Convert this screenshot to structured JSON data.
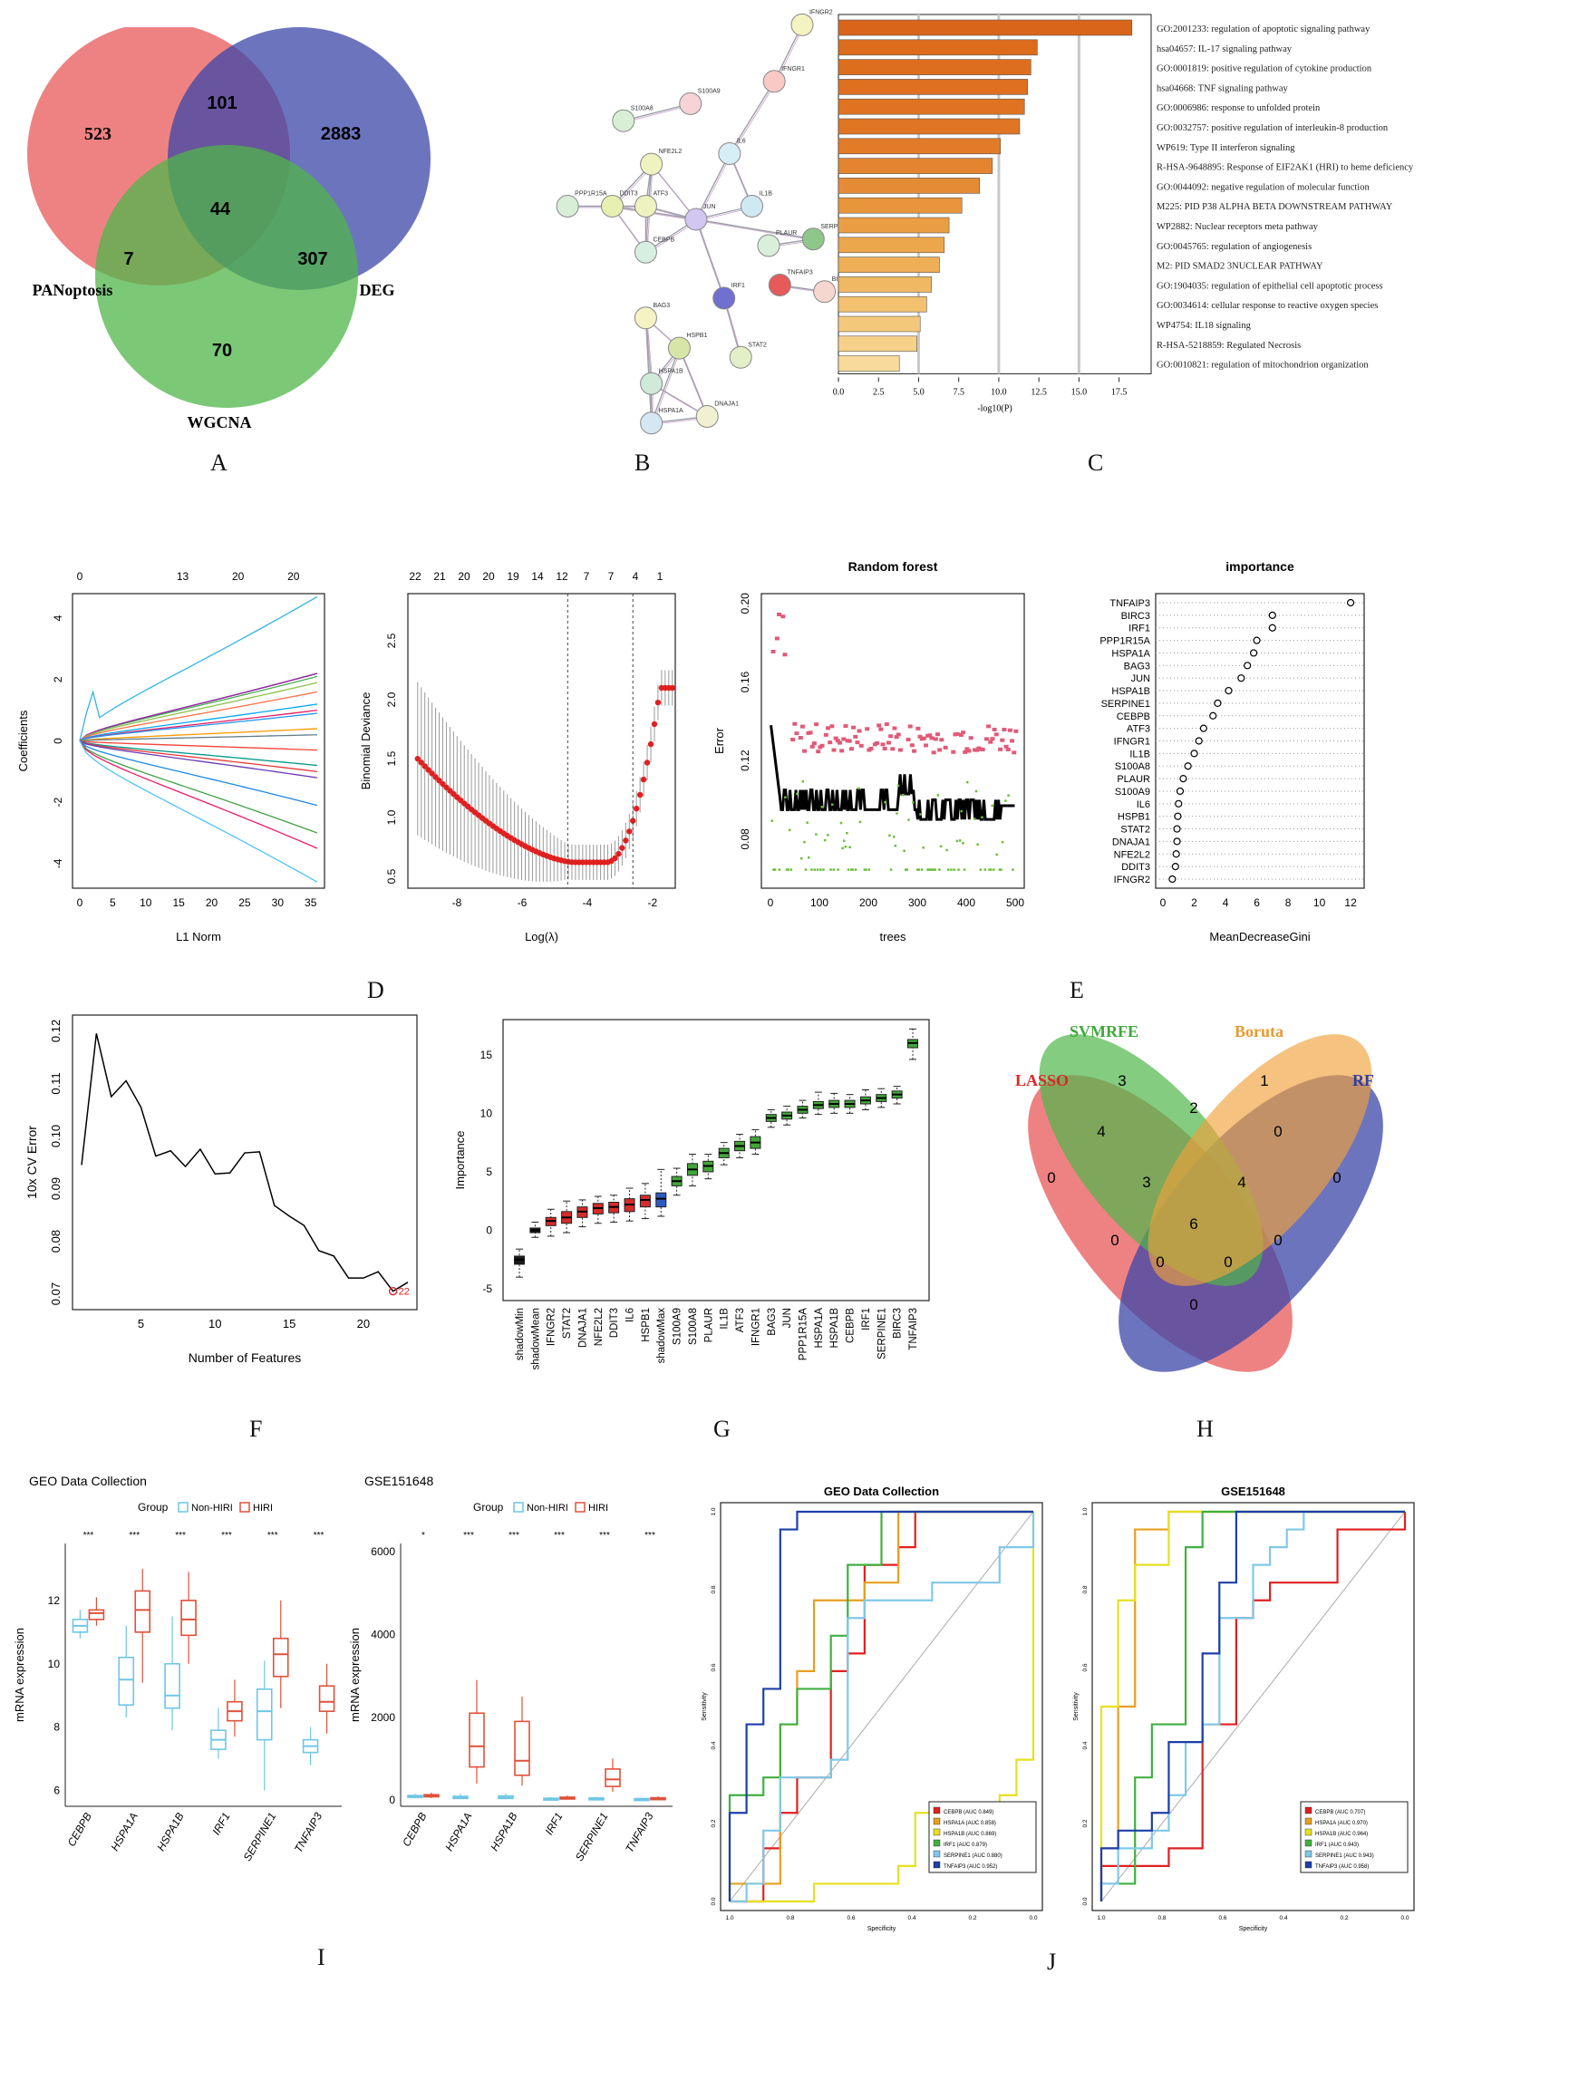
{
  "panel_letters": [
    "A",
    "B",
    "C",
    "D",
    "E",
    "F",
    "G",
    "H",
    "I",
    "J"
  ],
  "venn_a": {
    "sets": [
      {
        "name": "PANoptosis",
        "color": "#e8585a"
      },
      {
        "name": "DEG",
        "color": "#3c46a8"
      },
      {
        "name": "WGCNA",
        "color": "#4fb64a"
      }
    ],
    "counts": {
      "only_pan": "523",
      "only_deg": "2883",
      "only_wgcna": "70",
      "pan_deg": "101",
      "pan_wgcna": "7",
      "deg_wgcna": "307",
      "all": "44"
    }
  },
  "ppi_b": {
    "nodes": [
      {
        "id": "IFNGR2",
        "color": "#f4f3c2"
      },
      {
        "id": "IFNGR1",
        "color": "#f9c9c6"
      },
      {
        "id": "S100A8",
        "color": "#d8efd6"
      },
      {
        "id": "S100A9",
        "color": "#f6d3d6"
      },
      {
        "id": "NFE2L2",
        "color": "#eef3c0"
      },
      {
        "id": "DDIT3",
        "color": "#e7f0b0"
      },
      {
        "id": "PPP1R15A",
        "color": "#d9eed7"
      },
      {
        "id": "ATF3",
        "color": "#eef2be"
      },
      {
        "id": "CEBPB",
        "color": "#d7efe0"
      },
      {
        "id": "JUN",
        "color": "#d2c7f1"
      },
      {
        "id": "IL6",
        "color": "#d7eef7"
      },
      {
        "id": "IL1B",
        "color": "#cfe9f3"
      },
      {
        "id": "PLAUR",
        "color": "#d9efd9"
      },
      {
        "id": "SERPINE1",
        "color": "#8fc78a"
      },
      {
        "id": "TNFAIP3",
        "color": "#e65a5a"
      },
      {
        "id": "BIRC3",
        "color": "#f6d7d0"
      },
      {
        "id": "IRF1",
        "color": "#6f70d0"
      },
      {
        "id": "STAT2",
        "color": "#e3efc7"
      },
      {
        "id": "BAG3",
        "color": "#f5f2c4"
      },
      {
        "id": "HSPB1",
        "color": "#d7e6a8"
      },
      {
        "id": "HSPA1B",
        "color": "#cfead8"
      },
      {
        "id": "HSPA1A",
        "color": "#d4e7f2"
      },
      {
        "id": "DNAJA1",
        "color": "#f2f0d2"
      }
    ]
  },
  "enrich_c": {
    "xlabel": "-log10(P)",
    "ticks": [
      "0.0",
      "2.5",
      "5.0",
      "7.5",
      "10.0",
      "12.5",
      "15.0",
      "17.5"
    ],
    "terms": [
      {
        "label": "GO:2001233: regulation of apoptotic signaling pathway",
        "value": 18.3,
        "color": "#d9651a"
      },
      {
        "label": "hsa04657: IL-17 signaling pathway",
        "value": 12.4,
        "color": "#dc6b1c"
      },
      {
        "label": "GO:0001819: positive regulation of cytokine production",
        "value": 12.0,
        "color": "#dd6e1e"
      },
      {
        "label": "hsa04668: TNF signaling pathway",
        "value": 11.8,
        "color": "#de7020"
      },
      {
        "label": "GO:0006986: response to unfolded protein",
        "value": 11.6,
        "color": "#df7322"
      },
      {
        "label": "GO:0032757: positive regulation of interleukin-8 production",
        "value": 11.3,
        "color": "#e07524"
      },
      {
        "label": "WP619: Type II interferon signaling",
        "value": 10.1,
        "color": "#e27b28"
      },
      {
        "label": "R-HSA-9648895: Response of EIF2AK1 (HRI) to heme deficiency",
        "value": 9.6,
        "color": "#e48430"
      },
      {
        "label": "GO:0044092: negative regulation of molecular function",
        "value": 8.8,
        "color": "#e68b35"
      },
      {
        "label": "M225: PID P38 ALPHA BETA DOWNSTREAM PATHWAY",
        "value": 7.7,
        "color": "#e8953c"
      },
      {
        "label": "WP2882: Nuclear receptors meta pathway",
        "value": 6.9,
        "color": "#ea9e44"
      },
      {
        "label": "GO:0045765: regulation of angiogenesis",
        "value": 6.6,
        "color": "#eca64c"
      },
      {
        "label": "M2: PID SMAD2 3NUCLEAR PATHWAY",
        "value": 6.3,
        "color": "#eeaf57"
      },
      {
        "label": "GO:1904035: regulation of epithelial cell apoptotic process",
        "value": 5.8,
        "color": "#f0b862"
      },
      {
        "label": "GO:0034614: cellular response to reactive oxygen species",
        "value": 5.5,
        "color": "#f2c06e"
      },
      {
        "label": "WP4754: IL18 signaling",
        "value": 5.1,
        "color": "#f3c87b"
      },
      {
        "label": "R-HSA-5218859: Regulated Necrosis",
        "value": 4.9,
        "color": "#f5d088"
      },
      {
        "label": "GO:0010821: regulation of mitochondrion organization",
        "value": 3.8,
        "color": "#f7da9c"
      }
    ]
  },
  "lasso_coef": {
    "xlabel": "L1 Norm",
    "ylabel": "Coefficients",
    "top_ticks": [
      "0",
      "13",
      "20",
      "20"
    ],
    "x_ticks": [
      "0",
      "5",
      "10",
      "15",
      "20",
      "25",
      "30",
      "35"
    ],
    "y_ticks": [
      "-4",
      "-2",
      "0",
      "2",
      "4"
    ]
  },
  "lasso_cv": {
    "xlabel": "Log(λ)",
    "ylabel": "Binomial Deviance",
    "top_ticks": [
      "22",
      "21",
      "20",
      "20",
      "19",
      "14",
      "12",
      "7",
      "7",
      "4",
      "1"
    ],
    "x_ticks": [
      "-8",
      "-6",
      "-4",
      "-2"
    ],
    "y_ticks": [
      "0.5",
      "1.0",
      "1.5",
      "2.0",
      "2.5"
    ]
  },
  "rf_error": {
    "title": "Random forest",
    "xlabel": "trees",
    "ylabel": "Error",
    "x_ticks": [
      "0",
      "100",
      "200",
      "300",
      "400",
      "500"
    ],
    "y_ticks": [
      "0.08",
      "0.12",
      "0.16",
      "0.20"
    ]
  },
  "rf_importance": {
    "title": "importance",
    "xlabel": "MeanDecreaseGini",
    "x_ticks": [
      "0",
      "2",
      "4",
      "6",
      "8",
      "10",
      "12"
    ],
    "genes": [
      "TNFAIP3",
      "BIRC3",
      "IRF1",
      "PPP1R15A",
      "HSPA1A",
      "BAG3",
      "JUN",
      "HSPA1B",
      "SERPINE1",
      "CEBPB",
      "ATF3",
      "IFNGR1",
      "IL1B",
      "S100A8",
      "PLAUR",
      "S100A9",
      "IL6",
      "HSPB1",
      "STAT2",
      "DNAJA1",
      "NFE2L2",
      "DDIT3",
      "IFNGR2"
    ],
    "values": [
      12.0,
      7.0,
      7.0,
      6.0,
      5.8,
      5.4,
      5.0,
      4.2,
      3.5,
      3.2,
      2.6,
      2.3,
      2.0,
      1.6,
      1.3,
      1.1,
      1.0,
      0.95,
      0.9,
      0.9,
      0.85,
      0.8,
      0.6
    ]
  },
  "svm_cv": {
    "xlabel": "Number of Features",
    "ylabel": "10x CV Error",
    "x_ticks": [
      "5",
      "10",
      "15",
      "20"
    ],
    "y_ticks": [
      "0.07",
      "0.08",
      "0.09",
      "0.10",
      "0.11",
      "0.12"
    ],
    "best_label": "22",
    "points": [
      [
        1,
        0.0945
      ],
      [
        2,
        0.1195
      ],
      [
        3,
        0.1075
      ],
      [
        4,
        0.1105
      ],
      [
        5,
        0.1055
      ],
      [
        6,
        0.0962
      ],
      [
        7,
        0.0972
      ],
      [
        8,
        0.0942
      ],
      [
        9,
        0.0975
      ],
      [
        10,
        0.0928
      ],
      [
        11,
        0.093
      ],
      [
        12,
        0.0968
      ],
      [
        13,
        0.097
      ],
      [
        14,
        0.0868
      ],
      [
        15,
        0.0848
      ],
      [
        16,
        0.083
      ],
      [
        17,
        0.0782
      ],
      [
        18,
        0.0772
      ],
      [
        19,
        0.073
      ],
      [
        20,
        0.073
      ],
      [
        21,
        0.0742
      ],
      [
        22,
        0.0705
      ],
      [
        23,
        0.0722
      ]
    ]
  },
  "boruta_g": {
    "ylabel": "Importance",
    "y_ticks": [
      "-5",
      "0",
      "5",
      "10",
      "15"
    ],
    "boxes": [
      {
        "name": "shadowMin",
        "med": -2.5,
        "q1": -2.9,
        "q3": -2.2,
        "lo": -4.0,
        "hi": -1.6,
        "color": "#1a1a1a"
      },
      {
        "name": "shadowMean",
        "med": 0.0,
        "q1": -0.2,
        "q3": 0.2,
        "lo": -0.6,
        "hi": 0.7,
        "color": "#1a1a1a"
      },
      {
        "name": "IFNGR2",
        "med": 0.8,
        "q1": 0.4,
        "q3": 1.1,
        "lo": -0.5,
        "hi": 1.8,
        "color": "#d62c2c"
      },
      {
        "name": "STAT2",
        "med": 1.1,
        "q1": 0.6,
        "q3": 1.6,
        "lo": -0.2,
        "hi": 2.5,
        "color": "#d62c2c"
      },
      {
        "name": "DNAJA1",
        "med": 1.6,
        "q1": 1.1,
        "q3": 2.0,
        "lo": 0.3,
        "hi": 2.6,
        "color": "#d62c2c"
      },
      {
        "name": "NFE2L2",
        "med": 1.9,
        "q1": 1.4,
        "q3": 2.3,
        "lo": 0.6,
        "hi": 2.9,
        "color": "#d62c2c"
      },
      {
        "name": "DDIT3",
        "med": 2.0,
        "q1": 1.5,
        "q3": 2.4,
        "lo": 0.7,
        "hi": 3.0,
        "color": "#d62c2c"
      },
      {
        "name": "IL6",
        "med": 2.2,
        "q1": 1.6,
        "q3": 2.7,
        "lo": 0.8,
        "hi": 3.6,
        "color": "#d62c2c"
      },
      {
        "name": "HSPB1",
        "med": 2.6,
        "q1": 2.0,
        "q3": 3.0,
        "lo": 1.0,
        "hi": 4.0,
        "color": "#d62c2c"
      },
      {
        "name": "shadowMax",
        "med": 2.7,
        "q1": 2.0,
        "q3": 3.2,
        "lo": 1.2,
        "hi": 5.2,
        "color": "#2c5bbf"
      },
      {
        "name": "S100A9",
        "med": 4.2,
        "q1": 3.8,
        "q3": 4.6,
        "lo": 3.0,
        "hi": 5.3,
        "color": "#43a63a"
      },
      {
        "name": "S100A8",
        "med": 5.2,
        "q1": 4.7,
        "q3": 5.7,
        "lo": 3.8,
        "hi": 6.5,
        "color": "#43a63a"
      },
      {
        "name": "PLAUR",
        "med": 5.5,
        "q1": 5.0,
        "q3": 5.9,
        "lo": 4.4,
        "hi": 6.5,
        "color": "#43a63a"
      },
      {
        "name": "IL1B",
        "med": 6.6,
        "q1": 6.2,
        "q3": 7.0,
        "lo": 5.6,
        "hi": 7.5,
        "color": "#43a63a"
      },
      {
        "name": "ATF3",
        "med": 7.2,
        "q1": 6.8,
        "q3": 7.6,
        "lo": 6.2,
        "hi": 8.2,
        "color": "#43a63a"
      },
      {
        "name": "IFNGR1",
        "med": 7.5,
        "q1": 7.0,
        "q3": 8.0,
        "lo": 6.5,
        "hi": 8.6,
        "color": "#43a63a"
      },
      {
        "name": "BAG3",
        "med": 9.6,
        "q1": 9.3,
        "q3": 9.9,
        "lo": 8.8,
        "hi": 10.3,
        "color": "#43a63a"
      },
      {
        "name": "JUN",
        "med": 9.8,
        "q1": 9.5,
        "q3": 10.1,
        "lo": 9.0,
        "hi": 10.6,
        "color": "#43a63a"
      },
      {
        "name": "PPP1R15A",
        "med": 10.3,
        "q1": 10.0,
        "q3": 10.6,
        "lo": 9.6,
        "hi": 11.1,
        "color": "#43a63a"
      },
      {
        "name": "HSPA1A",
        "med": 10.7,
        "q1": 10.4,
        "q3": 11.0,
        "lo": 9.9,
        "hi": 11.8,
        "color": "#43a63a"
      },
      {
        "name": "HSPA1B",
        "med": 10.8,
        "q1": 10.5,
        "q3": 11.1,
        "lo": 10.0,
        "hi": 11.7,
        "color": "#43a63a"
      },
      {
        "name": "CEBPB",
        "med": 10.8,
        "q1": 10.5,
        "q3": 11.1,
        "lo": 10.0,
        "hi": 11.6,
        "color": "#43a63a"
      },
      {
        "name": "IRF1",
        "med": 11.1,
        "q1": 10.8,
        "q3": 11.4,
        "lo": 10.3,
        "hi": 12.0,
        "color": "#43a63a"
      },
      {
        "name": "SERPINE1",
        "med": 11.3,
        "q1": 11.0,
        "q3": 11.6,
        "lo": 10.5,
        "hi": 12.1,
        "color": "#43a63a"
      },
      {
        "name": "BIRC3",
        "med": 11.6,
        "q1": 11.3,
        "q3": 11.9,
        "lo": 10.8,
        "hi": 12.3,
        "color": "#43a63a"
      },
      {
        "name": "TNFAIP3",
        "med": 16.0,
        "q1": 15.6,
        "q3": 16.3,
        "lo": 14.6,
        "hi": 17.2,
        "color": "#43a63a"
      }
    ]
  },
  "venn_h": {
    "sets": [
      {
        "name": "LASSO",
        "color": "#e8585a"
      },
      {
        "name": "SVMRFE",
        "color": "#4fb64a"
      },
      {
        "name": "Boruta",
        "color": "#f0a23a"
      },
      {
        "name": "RF",
        "color": "#3c46a8"
      }
    ],
    "counts": [
      "0",
      "3",
      "1",
      "0",
      "4",
      "2",
      "0",
      "3",
      "4",
      "0",
      "6",
      "0",
      "0",
      "0",
      "0"
    ]
  },
  "box_i1": {
    "title": "GEO Data Collection",
    "legend_title": "Group",
    "groups": [
      "Non-HIRI",
      "HIRI"
    ],
    "ylabel": "mRNA expression",
    "y_ticks": [
      "6",
      "8",
      "10",
      "12"
    ],
    "genes": [
      "CEBPB",
      "HSPA1A",
      "HSPA1B",
      "IRF1",
      "SERPINE1",
      "TNFAIP3"
    ],
    "sig": [
      "***",
      "***",
      "***",
      "***",
      "***",
      "***"
    ],
    "stats": [
      [
        [
          10.8,
          11.0,
          11.2,
          11.4,
          11.7
        ],
        [
          11.2,
          11.4,
          11.6,
          11.7,
          12.1
        ]
      ],
      [
        [
          8.3,
          8.7,
          9.5,
          10.2,
          11.2
        ],
        [
          9.4,
          11.0,
          11.7,
          12.3,
          13.0
        ]
      ],
      [
        [
          7.9,
          8.6,
          9.0,
          10.0,
          11.5
        ],
        [
          10.0,
          10.9,
          11.4,
          12.0,
          12.9
        ]
      ],
      [
        [
          7.0,
          7.3,
          7.6,
          7.9,
          8.6
        ],
        [
          7.7,
          8.2,
          8.5,
          8.8,
          9.5
        ]
      ],
      [
        [
          6.0,
          7.6,
          8.5,
          9.2,
          10.1
        ],
        [
          8.6,
          9.6,
          10.3,
          10.8,
          12.0
        ]
      ],
      [
        [
          6.8,
          7.2,
          7.4,
          7.6,
          8.0
        ],
        [
          7.8,
          8.5,
          8.8,
          9.3,
          10.0
        ]
      ]
    ]
  },
  "box_i2": {
    "title": "GSE151648",
    "legend_title": "Group",
    "groups": [
      "Non-HIRI",
      "HIRI"
    ],
    "ylabel": "mRNA expression",
    "y_ticks": [
      "0",
      "2000",
      "4000",
      "6000"
    ],
    "genes": [
      "CEBPB",
      "HSPA1A",
      "HSPA1B",
      "IRF1",
      "SERPINE1",
      "TNFAIP3"
    ],
    "sig": [
      "*",
      "***",
      "***",
      "***",
      "***",
      "***"
    ],
    "stats": [
      [
        [
          40,
          70,
          90,
          110,
          150
        ],
        [
          50,
          80,
          100,
          130,
          180
        ]
      ],
      [
        [
          20,
          40,
          60,
          90,
          150
        ],
        [
          400,
          800,
          1300,
          2100,
          2900
        ]
      ],
      [
        [
          20,
          40,
          60,
          100,
          160
        ],
        [
          350,
          600,
          950,
          1900,
          2500
        ]
      ],
      [
        [
          10,
          20,
          30,
          45,
          70
        ],
        [
          25,
          40,
          55,
          70,
          110
        ]
      ],
      [
        [
          15,
          25,
          35,
          50,
          80
        ],
        [
          200,
          330,
          500,
          750,
          1000
        ]
      ],
      [
        [
          5,
          15,
          25,
          35,
          60
        ],
        [
          15,
          30,
          40,
          55,
          90
        ]
      ]
    ]
  },
  "roc_j1": {
    "title": "GEO Data Collection",
    "xlabel": "Specificity",
    "ylabel": "Sensitivity",
    "x_ticks": [
      "1.0",
      "0.8",
      "0.6",
      "0.4",
      "0.2",
      "0.0"
    ],
    "y_ticks": [
      "0.0",
      "0.2",
      "0.4",
      "0.6",
      "0.8",
      "1.0"
    ],
    "legend": [
      "CEBPB (AUC 0.849)",
      "HSPA1A (AUC 0.858)",
      "HSPA1B (AUC 0.869)",
      "IRF1 (AUC 0.879)",
      "SERPINE1 (AUC 0.880)",
      "TNFAIP3 (AUC 0.952)"
    ],
    "colors": [
      "#e02020",
      "#e6a020",
      "#e6e020",
      "#40b040",
      "#80c8e8",
      "#1d3fa8"
    ]
  },
  "roc_j2": {
    "title": "GSE151648",
    "xlabel": "Specificity",
    "ylabel": "Sensitivity",
    "x_ticks": [
      "1.0",
      "0.8",
      "0.6",
      "0.4",
      "0.2",
      "0.0"
    ],
    "y_ticks": [
      "0.0",
      "0.2",
      "0.4",
      "0.6",
      "0.8",
      "1.0"
    ],
    "legend": [
      "CEBPB (AUC 0.707)",
      "HSPA1A (AUC 0.970)",
      "HSPA1B (AUC 0.964)",
      "IRF1 (AUC 0.943)",
      "SERPINE1 (AUC 0.943)",
      "TNFAIP3 (AUC 0.958)"
    ],
    "colors": [
      "#e02020",
      "#e6a020",
      "#e6e020",
      "#40b040",
      "#80c8e8",
      "#1d3fa8"
    ]
  }
}
